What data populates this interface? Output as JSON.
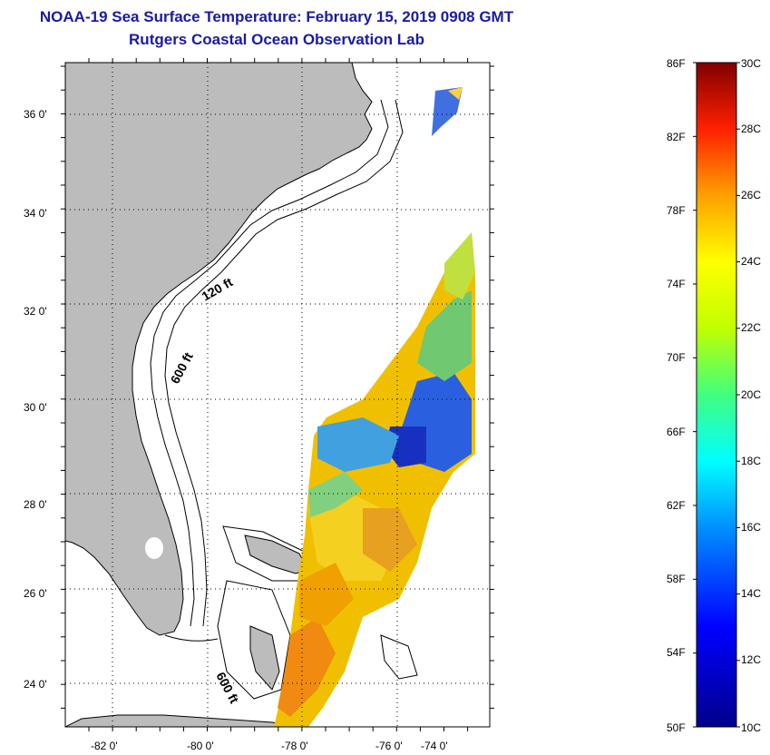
{
  "header": {
    "title": "NOAA-19 Sea Surface Temperature:  February 15, 2019 0908 GMT",
    "subtitle": "Rutgers Coastal Ocean Observation Lab"
  },
  "map": {
    "lon_range": [
      -83,
      -72.2
    ],
    "lat_range": [
      23,
      37
    ],
    "lon_ticks": [
      -82,
      -80,
      -78,
      -76,
      -74
    ],
    "lat_ticks": [
      24,
      26,
      28,
      30,
      32,
      34,
      36
    ],
    "lon_tick_labels": [
      "-82 0'",
      "-80 0'",
      "-78 0'",
      "-76 0'",
      "-74 0'"
    ],
    "lat_tick_labels": [
      "24 0'",
      "26 0'",
      "28 0'",
      "30 0'",
      "32 0'",
      "34 0'",
      "36 0'"
    ],
    "contour_labels": [
      "120 ft",
      "600 ft",
      "600 ft"
    ],
    "colors": {
      "land": "#bcbcbc",
      "grid": "#000000"
    }
  },
  "colorbar": {
    "fahrenheit_labels": [
      "86F",
      "82F",
      "78F",
      "74F",
      "70F",
      "66F",
      "62F",
      "58F",
      "54F",
      "50F"
    ],
    "celsius_labels": [
      "30C",
      "28C",
      "26C",
      "24C",
      "22C",
      "20C",
      "18C",
      "16C",
      "14C",
      "12C",
      "10C"
    ],
    "range_c": [
      10,
      30
    ],
    "colors": [
      "#00008b",
      "#0000ff",
      "#0080ff",
      "#00ffff",
      "#40ff80",
      "#c0ff00",
      "#ffff00",
      "#ffa000",
      "#ff4000",
      "#d00000",
      "#800000"
    ]
  }
}
